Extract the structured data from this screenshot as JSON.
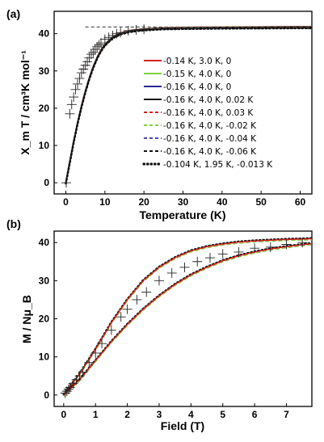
{
  "chart_data": [
    {
      "panel": "(a)",
      "type": "line",
      "xlabel": "Temperature (K)",
      "ylabel": "X_m T / cm³K mol⁻¹",
      "xlim": [
        -3,
        63
      ],
      "ylim": [
        -3,
        46
      ],
      "xticks": [
        0,
        10,
        20,
        30,
        40,
        50,
        60
      ],
      "yticks": [
        0,
        10,
        20,
        30,
        40
      ],
      "reference_line": {
        "y": 41.8,
        "style": "dashed"
      },
      "legend_position": "right-center",
      "experimental_data": {
        "marker": "plus",
        "x": [
          0.1,
          1,
          1.5,
          2,
          2.5,
          3,
          3.5,
          4,
          4.5,
          5,
          5.5,
          6,
          6.5,
          7,
          7.5,
          8,
          8.5,
          9,
          10,
          11,
          12,
          13,
          14,
          16,
          18,
          20
        ],
        "y": [
          0,
          18.5,
          21,
          23,
          25,
          26.5,
          28,
          29.5,
          30.5,
          31.5,
          32.5,
          33.5,
          34.5,
          35,
          35.8,
          36.5,
          37,
          37.5,
          38.5,
          39,
          39.5,
          40,
          40.3,
          40.8,
          41,
          41.2
        ]
      },
      "series": [
        {
          "name": "-0.14 K, 3.0 K, 0",
          "color": "#d62020",
          "dash": "solid"
        },
        {
          "name": "-0.15 K, 4.0 K, 0",
          "color": "#80d040",
          "dash": "solid"
        },
        {
          "name": "-0.16 K, 4.0 K, 0",
          "color": "#2a2a9a",
          "dash": "solid"
        },
        {
          "name": "-0.16 K, 4.0 K, 0.02 K",
          "color": "#111111",
          "dash": "solid"
        },
        {
          "name": "-0.16 K, 4.0 K, 0.03 K",
          "color": "#d62020",
          "dash": "dashed"
        },
        {
          "name": "-0.16 K, 4.0 K, -0.02 K",
          "color": "#80d040",
          "dash": "dashed"
        },
        {
          "name": "-0.16 K, 4.0 K, -0.04 K",
          "color": "#4a4ab0",
          "dash": "dashed"
        },
        {
          "name": "-0.16 K, 4.0 K, -0.06 K",
          "color": "#111111",
          "dash": "dashed"
        },
        {
          "name": "-0.104 K, 1.95 K, -0.013 K",
          "color": "#111111",
          "dash": "dotted"
        }
      ],
      "curve": {
        "x": [
          0,
          1,
          2,
          3,
          4,
          5,
          6,
          7,
          8,
          9,
          10,
          12,
          14,
          16,
          18,
          20,
          25,
          30,
          40,
          50,
          60,
          63
        ],
        "y": [
          0,
          5.5,
          11,
          16,
          20.5,
          24.5,
          28,
          31,
          33.5,
          35.5,
          37,
          39,
          40,
          40.6,
          40.9,
          41.1,
          41.4,
          41.5,
          41.6,
          41.65,
          41.7,
          41.7
        ]
      }
    },
    {
      "panel": "(b)",
      "type": "line",
      "xlabel": "Field (T)",
      "ylabel": "M / Nμ_B",
      "xlim": [
        -0.3,
        7.8
      ],
      "ylim": [
        -3,
        43
      ],
      "xticks": [
        0,
        1,
        2,
        3,
        4,
        5,
        6,
        7
      ],
      "yticks": [
        0,
        10,
        20,
        30,
        40
      ],
      "experimental_data": {
        "marker": "plus",
        "x": [
          0.05,
          0.1,
          0.15,
          0.2,
          0.3,
          0.4,
          0.5,
          0.6,
          0.8,
          1.0,
          1.2,
          1.5,
          1.8,
          2.0,
          2.3,
          2.6,
          3.0,
          3.4,
          3.8,
          4.2,
          4.6,
          5.0,
          5.5,
          6.0,
          6.5,
          7.0,
          7.5
        ],
        "y": [
          0.5,
          1,
          1.5,
          2,
          3,
          4,
          5,
          6,
          8.5,
          11,
          13.5,
          17,
          20.5,
          22.5,
          25,
          27,
          30,
          32,
          33.5,
          35,
          36,
          37,
          37.5,
          38.5,
          38.8,
          39.5,
          40
        ]
      },
      "curves": [
        {
          "name": "upper",
          "color": "#d62020",
          "x": [
            0,
            0.5,
            1,
            1.5,
            2,
            2.5,
            3,
            3.5,
            4,
            4.5,
            5,
            5.5,
            6,
            6.5,
            7,
            7.5,
            7.8
          ],
          "y": [
            0,
            5.5,
            12,
            19,
            25,
            30,
            33.5,
            36,
            37.8,
            38.9,
            39.6,
            40.1,
            40.4,
            40.6,
            40.8,
            40.9,
            41
          ]
        },
        {
          "name": "lower",
          "color": "#d62020",
          "x": [
            0,
            0.5,
            1,
            1.5,
            2,
            2.5,
            3,
            3.5,
            4,
            4.5,
            5,
            5.5,
            6,
            6.5,
            7,
            7.5,
            7.8
          ],
          "y": [
            0,
            4,
            9,
            14,
            18.5,
            22.5,
            26,
            29,
            31.5,
            33.5,
            35.2,
            36.5,
            37.5,
            38.3,
            38.9,
            39.4,
            39.7
          ]
        }
      ]
    }
  ]
}
